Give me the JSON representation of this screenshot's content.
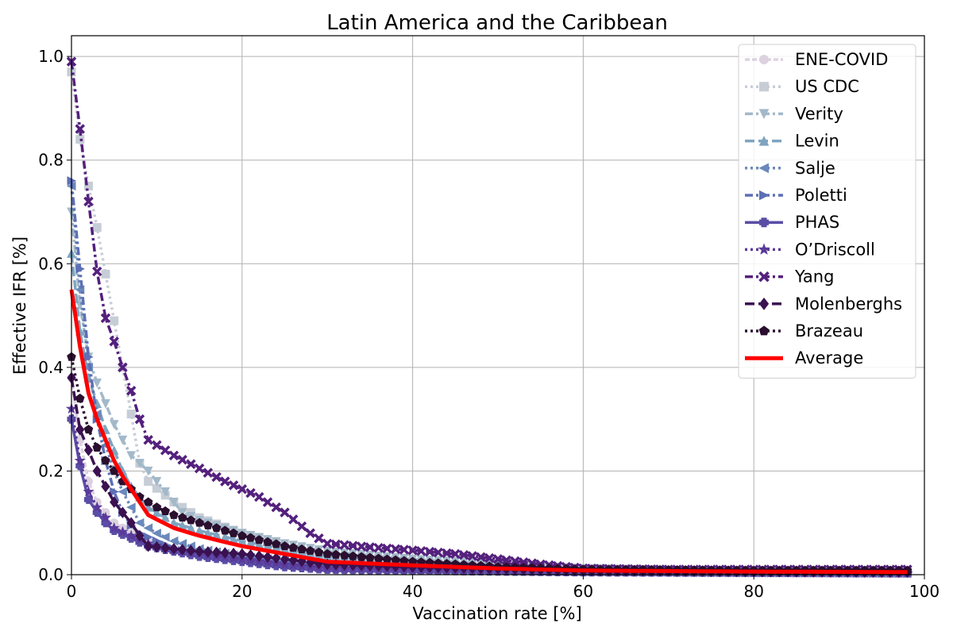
{
  "chart_data": {
    "type": "line",
    "title": "Latin America and the Caribbean",
    "xlabel": "Vaccination rate [%]",
    "ylabel": "Effective IFR [%]",
    "xlim": [
      0,
      100
    ],
    "ylim": [
      0,
      1.04
    ],
    "xticks": [
      "0",
      "20",
      "40",
      "60",
      "80",
      "100"
    ],
    "yticks": [
      "0.0",
      "0.2",
      "0.4",
      "0.6",
      "0.8",
      "1.0"
    ],
    "grid": true,
    "legend_position": "top-right",
    "x_step": 1,
    "x_max": 98,
    "series": [
      {
        "name": "ENE-COVID",
        "color": "#dcd2df",
        "marker": "circle",
        "dash": "6,3",
        "anchors": [
          [
            0,
            0.38
          ],
          [
            1,
            0.26
          ],
          [
            2,
            0.18
          ],
          [
            3,
            0.14
          ],
          [
            4,
            0.12
          ],
          [
            5,
            0.1
          ],
          [
            7,
            0.08
          ],
          [
            9,
            0.065
          ],
          [
            12,
            0.05
          ],
          [
            15,
            0.04
          ],
          [
            20,
            0.03
          ],
          [
            30,
            0.02
          ],
          [
            40,
            0.015
          ],
          [
            60,
            0.008
          ],
          [
            80,
            0.004
          ],
          [
            98,
            0.002
          ]
        ]
      },
      {
        "name": "US CDC",
        "color": "#c7cdd6",
        "marker": "square",
        "dash": "3,4",
        "anchors": [
          [
            0,
            0.97
          ],
          [
            1,
            0.84
          ],
          [
            2,
            0.75
          ],
          [
            3,
            0.67
          ],
          [
            4,
            0.58
          ],
          [
            5,
            0.49
          ],
          [
            6,
            0.4
          ],
          [
            7,
            0.31
          ],
          [
            8,
            0.215
          ],
          [
            9,
            0.18
          ],
          [
            12,
            0.14
          ],
          [
            15,
            0.11
          ],
          [
            20,
            0.08
          ],
          [
            25,
            0.055
          ],
          [
            30,
            0.03
          ],
          [
            40,
            0.02
          ],
          [
            60,
            0.01
          ],
          [
            80,
            0.006
          ],
          [
            98,
            0.004
          ]
        ]
      },
      {
        "name": "Verity",
        "color": "#a3b9c9",
        "marker": "triangle-down",
        "dash": "10,4,3,4",
        "anchors": [
          [
            0,
            0.7
          ],
          [
            1,
            0.52
          ],
          [
            2,
            0.42
          ],
          [
            3,
            0.37
          ],
          [
            4,
            0.33
          ],
          [
            5,
            0.29
          ],
          [
            6,
            0.26
          ],
          [
            7,
            0.23
          ],
          [
            8,
            0.215
          ],
          [
            9,
            0.2
          ],
          [
            10,
            0.18
          ],
          [
            11,
            0.16
          ],
          [
            13,
            0.12
          ],
          [
            15,
            0.105
          ],
          [
            20,
            0.08
          ],
          [
            25,
            0.06
          ],
          [
            30,
            0.045
          ],
          [
            40,
            0.03
          ],
          [
            60,
            0.012
          ],
          [
            80,
            0.006
          ],
          [
            98,
            0.004
          ]
        ]
      },
      {
        "name": "Levin",
        "color": "#7fa4c0",
        "marker": "triangle-up",
        "dash": "12,5",
        "anchors": [
          [
            0,
            0.62
          ],
          [
            1,
            0.47
          ],
          [
            2,
            0.38
          ],
          [
            3,
            0.33
          ],
          [
            4,
            0.28
          ],
          [
            5,
            0.24
          ],
          [
            6,
            0.2
          ],
          [
            7,
            0.17
          ],
          [
            8,
            0.15
          ],
          [
            9,
            0.13
          ],
          [
            12,
            0.1
          ],
          [
            15,
            0.085
          ],
          [
            20,
            0.065
          ],
          [
            25,
            0.05
          ],
          [
            30,
            0.035
          ],
          [
            40,
            0.025
          ],
          [
            60,
            0.01
          ],
          [
            80,
            0.006
          ],
          [
            98,
            0.004
          ]
        ]
      },
      {
        "name": "Salje",
        "color": "#6a89bb",
        "marker": "triangle-left",
        "dash": "3,4",
        "anchors": [
          [
            0,
            0.75
          ],
          [
            1,
            0.55
          ],
          [
            2,
            0.4
          ],
          [
            3,
            0.31
          ],
          [
            4,
            0.25
          ],
          [
            5,
            0.2
          ],
          [
            6,
            0.16
          ],
          [
            7,
            0.13
          ],
          [
            8,
            0.1
          ],
          [
            10,
            0.08
          ],
          [
            12,
            0.065
          ],
          [
            15,
            0.05
          ],
          [
            20,
            0.035
          ],
          [
            30,
            0.02
          ],
          [
            40,
            0.015
          ],
          [
            60,
            0.007
          ],
          [
            80,
            0.004
          ],
          [
            98,
            0.003
          ]
        ]
      },
      {
        "name": "Poletti",
        "color": "#5d6fb5",
        "marker": "triangle-right",
        "dash": "10,4,3,4",
        "anchors": [
          [
            0,
            0.76
          ],
          [
            1,
            0.59
          ],
          [
            2,
            0.42
          ],
          [
            3,
            0.3
          ],
          [
            4,
            0.22
          ],
          [
            5,
            0.16
          ],
          [
            6,
            0.12
          ],
          [
            7,
            0.095
          ],
          [
            8,
            0.08
          ],
          [
            10,
            0.065
          ],
          [
            12,
            0.05
          ],
          [
            15,
            0.04
          ],
          [
            20,
            0.03
          ],
          [
            25,
            0.02
          ],
          [
            30,
            0.015
          ],
          [
            40,
            0.01
          ],
          [
            60,
            0.006
          ],
          [
            80,
            0.004
          ],
          [
            98,
            0.003
          ]
        ]
      },
      {
        "name": "PHAS",
        "color": "#5a4da6",
        "marker": "plus",
        "dash": "",
        "anchors": [
          [
            0,
            0.3
          ],
          [
            1,
            0.21
          ],
          [
            2,
            0.145
          ],
          [
            3,
            0.12
          ],
          [
            4,
            0.1
          ],
          [
            5,
            0.085
          ],
          [
            7,
            0.07
          ],
          [
            9,
            0.055
          ],
          [
            12,
            0.045
          ],
          [
            15,
            0.035
          ],
          [
            20,
            0.025
          ],
          [
            25,
            0.015
          ],
          [
            30,
            0.01
          ],
          [
            40,
            0.008
          ],
          [
            60,
            0.005
          ],
          [
            80,
            0.004
          ],
          [
            98,
            0.003
          ]
        ]
      },
      {
        "name": "O’Driscoll",
        "color": "#5a3a9a",
        "marker": "star",
        "dash": "3,4",
        "anchors": [
          [
            0,
            0.32
          ],
          [
            1,
            0.22
          ],
          [
            2,
            0.16
          ],
          [
            3,
            0.13
          ],
          [
            4,
            0.11
          ],
          [
            5,
            0.09
          ],
          [
            7,
            0.075
          ],
          [
            9,
            0.06
          ],
          [
            12,
            0.048
          ],
          [
            15,
            0.04
          ],
          [
            20,
            0.03
          ],
          [
            25,
            0.02
          ],
          [
            30,
            0.012
          ],
          [
            40,
            0.01
          ],
          [
            60,
            0.006
          ],
          [
            80,
            0.004
          ],
          [
            98,
            0.003
          ]
        ]
      },
      {
        "name": "Yang",
        "color": "#54207d",
        "marker": "x",
        "dash": "10,4,3,4",
        "anchors": [
          [
            0,
            0.99
          ],
          [
            1,
            0.86
          ],
          [
            2,
            0.72
          ],
          [
            3,
            0.585
          ],
          [
            4,
            0.495
          ],
          [
            5,
            0.45
          ],
          [
            6,
            0.4
          ],
          [
            7,
            0.355
          ],
          [
            8,
            0.3
          ],
          [
            9,
            0.26
          ],
          [
            12,
            0.23
          ],
          [
            15,
            0.205
          ],
          [
            18,
            0.18
          ],
          [
            20,
            0.165
          ],
          [
            22,
            0.15
          ],
          [
            25,
            0.12
          ],
          [
            28,
            0.08
          ],
          [
            30,
            0.06
          ],
          [
            35,
            0.053
          ],
          [
            40,
            0.047
          ],
          [
            45,
            0.04
          ],
          [
            50,
            0.03
          ],
          [
            55,
            0.02
          ],
          [
            60,
            0.012
          ],
          [
            70,
            0.01
          ],
          [
            80,
            0.01
          ],
          [
            98,
            0.01
          ]
        ]
      },
      {
        "name": "Molenberghs",
        "color": "#3b1150",
        "marker": "diamond",
        "dash": "12,5",
        "anchors": [
          [
            0,
            0.38
          ],
          [
            1,
            0.28
          ],
          [
            2,
            0.24
          ],
          [
            3,
            0.2
          ],
          [
            4,
            0.17
          ],
          [
            5,
            0.14
          ],
          [
            6,
            0.12
          ],
          [
            7,
            0.1
          ],
          [
            8,
            0.075
          ],
          [
            9,
            0.055
          ],
          [
            12,
            0.05
          ],
          [
            15,
            0.045
          ],
          [
            20,
            0.04
          ],
          [
            25,
            0.03
          ],
          [
            30,
            0.02
          ],
          [
            40,
            0.015
          ],
          [
            60,
            0.008
          ],
          [
            80,
            0.006
          ],
          [
            98,
            0.005
          ]
        ]
      },
      {
        "name": "Brazeau",
        "color": "#2a0f2f",
        "marker": "pentagon",
        "dash": "3,4",
        "anchors": [
          [
            0,
            0.42
          ],
          [
            1,
            0.34
          ],
          [
            2,
            0.28
          ],
          [
            3,
            0.245
          ],
          [
            4,
            0.22
          ],
          [
            5,
            0.2
          ],
          [
            6,
            0.18
          ],
          [
            7,
            0.165
          ],
          [
            8,
            0.15
          ],
          [
            9,
            0.14
          ],
          [
            10,
            0.13
          ],
          [
            12,
            0.115
          ],
          [
            15,
            0.1
          ],
          [
            18,
            0.085
          ],
          [
            20,
            0.075
          ],
          [
            25,
            0.055
          ],
          [
            30,
            0.04
          ],
          [
            40,
            0.025
          ],
          [
            50,
            0.015
          ],
          [
            60,
            0.01
          ],
          [
            80,
            0.008
          ],
          [
            98,
            0.008
          ]
        ]
      },
      {
        "name": "Average",
        "color": "#ff0000",
        "marker": "none",
        "dash": "",
        "width": 5,
        "anchors": [
          [
            0,
            0.55
          ],
          [
            1,
            0.44
          ],
          [
            2,
            0.35
          ],
          [
            3,
            0.3
          ],
          [
            4,
            0.26
          ],
          [
            5,
            0.22
          ],
          [
            6,
            0.19
          ],
          [
            7,
            0.165
          ],
          [
            8,
            0.14
          ],
          [
            9,
            0.115
          ],
          [
            12,
            0.09
          ],
          [
            15,
            0.075
          ],
          [
            20,
            0.055
          ],
          [
            25,
            0.04
          ],
          [
            30,
            0.025
          ],
          [
            40,
            0.018
          ],
          [
            50,
            0.012
          ],
          [
            60,
            0.008
          ],
          [
            80,
            0.006
          ],
          [
            98,
            0.005
          ]
        ]
      }
    ]
  }
}
